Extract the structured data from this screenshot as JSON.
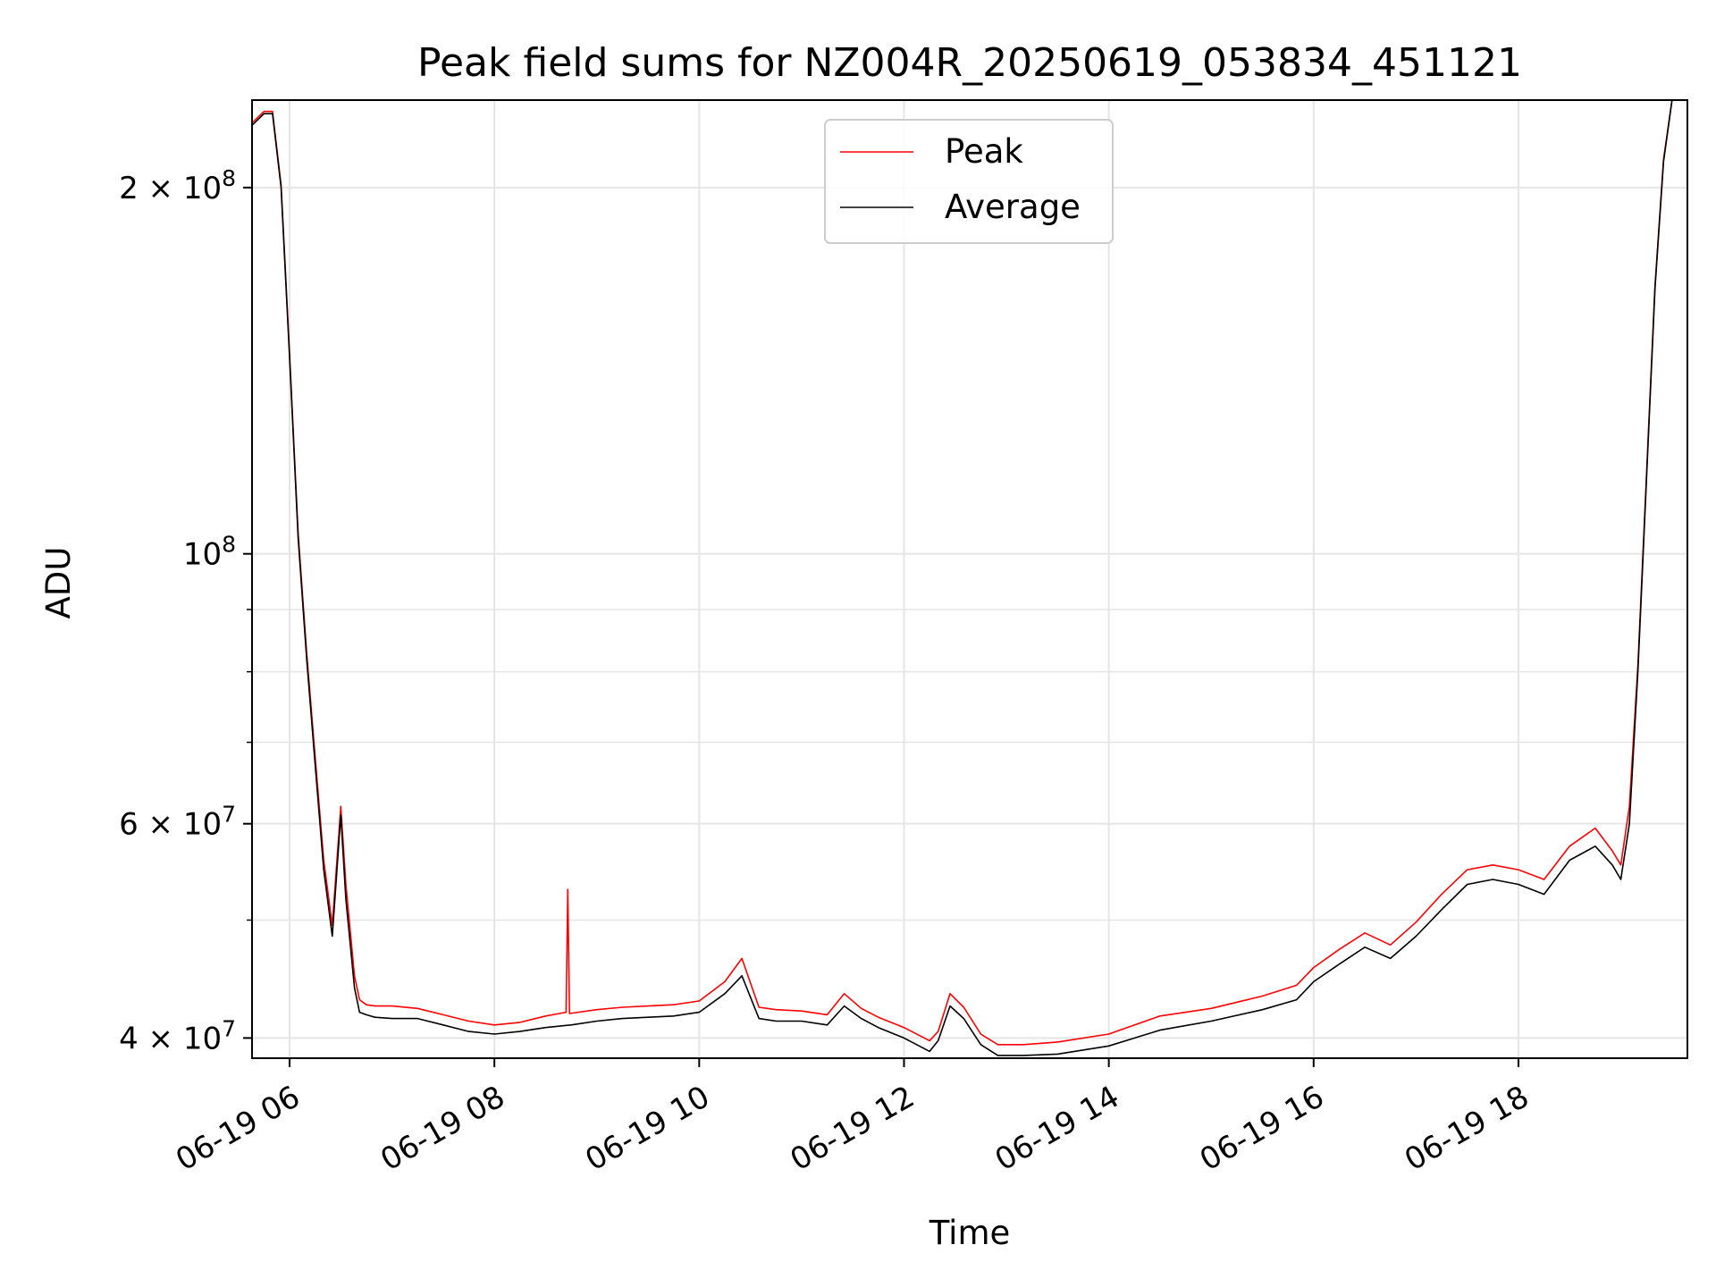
{
  "chart_data": {
    "type": "line",
    "title": "Peak field sums for NZ004R_20250619_053834_451121",
    "xlabel": "Time",
    "ylabel": "ADU",
    "y_scale": "log",
    "ylim": [
      38500000,
      236000000
    ],
    "xlim": [
      "06-19 05:38",
      "06-19 19:39"
    ],
    "x_ticks": [
      "06-19 06",
      "06-19 08",
      "06-19 10",
      "06-19 12",
      "06-19 14",
      "06-19 16",
      "06-19 18"
    ],
    "y_ticks": [
      {
        "value": 40000000,
        "label": "4 × 10⁷",
        "base": "4 × 10",
        "exp": "7"
      },
      {
        "value": 60000000,
        "label": "6 × 10⁷",
        "base": "6 × 10",
        "exp": "7"
      },
      {
        "value": 100000000,
        "label": "10⁸",
        "base": "10",
        "exp": "8"
      },
      {
        "value": 200000000,
        "label": "2 × 10⁸",
        "base": "2 × 10",
        "exp": "8"
      }
    ],
    "y_minor_ticks": [
      50000000,
      70000000,
      80000000,
      90000000
    ],
    "grid": true,
    "legend": {
      "position": "top-center",
      "entries": [
        "Peak",
        "Average"
      ]
    },
    "colors": {
      "Peak": "#ff0000",
      "Average": "#000000",
      "grid": "#e5e5e5"
    },
    "series": [
      {
        "name": "Average",
        "x": [
          "06-19 05:38",
          "06-19 05:45",
          "06-19 05:50",
          "06-19 05:55",
          "06-19 06:00",
          "06-19 06:05",
          "06-19 06:10",
          "06-19 06:15",
          "06-19 06:20",
          "06-19 06:25",
          "06-19 06:30",
          "06-19 06:33",
          "06-19 06:38",
          "06-19 06:41",
          "06-19 06:45",
          "06-19 06:50",
          "06-19 07:00",
          "06-19 07:15",
          "06-19 07:30",
          "06-19 07:45",
          "06-19 08:00",
          "06-19 08:15",
          "06-19 08:30",
          "06-19 08:45",
          "06-19 09:00",
          "06-19 09:15",
          "06-19 09:30",
          "06-19 09:45",
          "06-19 10:00",
          "06-19 10:15",
          "06-19 10:25",
          "06-19 10:35",
          "06-19 10:45",
          "06-19 11:00",
          "06-19 11:15",
          "06-19 11:25",
          "06-19 11:35",
          "06-19 11:45",
          "06-19 12:00",
          "06-19 12:15",
          "06-19 12:20",
          "06-19 12:27",
          "06-19 12:35",
          "06-19 12:45",
          "06-19 12:55",
          "06-19 13:10",
          "06-19 13:30",
          "06-19 14:00",
          "06-19 14:30",
          "06-19 15:00",
          "06-19 15:30",
          "06-19 15:50",
          "06-19 16:00",
          "06-19 16:15",
          "06-19 16:30",
          "06-19 16:45",
          "06-19 17:00",
          "06-19 17:15",
          "06-19 17:30",
          "06-19 17:45",
          "06-19 18:00",
          "06-19 18:15",
          "06-19 18:30",
          "06-19 18:45",
          "06-19 18:55",
          "06-19 19:00",
          "06-19 19:05",
          "06-19 19:10",
          "06-19 19:15",
          "06-19 19:20",
          "06-19 19:25",
          "06-19 19:30",
          "06-19 19:39"
        ],
        "values": [
          225000000,
          230000000,
          230000000,
          200000000,
          145000000,
          103000000,
          82000000,
          67000000,
          55000000,
          48500000,
          61000000,
          52000000,
          44000000,
          42000000,
          41800000,
          41600000,
          41500000,
          41500000,
          41000000,
          40500000,
          40300000,
          40500000,
          40800000,
          41000000,
          41300000,
          41500000,
          41600000,
          41700000,
          42000000,
          43500000,
          45000000,
          41500000,
          41300000,
          41300000,
          41000000,
          42500000,
          41500000,
          40800000,
          40000000,
          39000000,
          39800000,
          42500000,
          41500000,
          39500000,
          38700000,
          38700000,
          38800000,
          39400000,
          40600000,
          41300000,
          42200000,
          43000000,
          44500000,
          46000000,
          47500000,
          46500000,
          48500000,
          51000000,
          53500000,
          54000000,
          53500000,
          52500000,
          56000000,
          57500000,
          55500000,
          54000000,
          60000000,
          80000000,
          115000000,
          165000000,
          210000000,
          236000000,
          236000000
        ]
      },
      {
        "name": "Peak",
        "x": [
          "06-19 05:38",
          "06-19 05:45",
          "06-19 05:50",
          "06-19 05:55",
          "06-19 06:00",
          "06-19 06:05",
          "06-19 06:10",
          "06-19 06:15",
          "06-19 06:20",
          "06-19 06:25",
          "06-19 06:30",
          "06-19 06:33",
          "06-19 06:38",
          "06-19 06:41",
          "06-19 06:45",
          "06-19 06:50",
          "06-19 07:00",
          "06-19 07:15",
          "06-19 07:30",
          "06-19 07:45",
          "06-19 08:00",
          "06-19 08:15",
          "06-19 08:30",
          "06-19 08:42",
          "06-19 08:43",
          "06-19 08:44",
          "06-19 09:00",
          "06-19 09:15",
          "06-19 09:30",
          "06-19 09:45",
          "06-19 10:00",
          "06-19 10:15",
          "06-19 10:25",
          "06-19 10:35",
          "06-19 10:45",
          "06-19 11:00",
          "06-19 11:15",
          "06-19 11:25",
          "06-19 11:35",
          "06-19 11:45",
          "06-19 12:00",
          "06-19 12:15",
          "06-19 12:20",
          "06-19 12:27",
          "06-19 12:35",
          "06-19 12:45",
          "06-19 12:55",
          "06-19 13:10",
          "06-19 13:30",
          "06-19 14:00",
          "06-19 14:30",
          "06-19 15:00",
          "06-19 15:30",
          "06-19 15:50",
          "06-19 16:00",
          "06-19 16:15",
          "06-19 16:30",
          "06-19 16:45",
          "06-19 17:00",
          "06-19 17:15",
          "06-19 17:30",
          "06-19 17:45",
          "06-19 18:00",
          "06-19 18:15",
          "06-19 18:30",
          "06-19 18:45",
          "06-19 18:55",
          "06-19 19:00",
          "06-19 19:05",
          "06-19 19:10",
          "06-19 19:15",
          "06-19 19:20",
          "06-19 19:25",
          "06-19 19:30",
          "06-19 19:39"
        ],
        "values": [
          226000000,
          231000000,
          231000000,
          201000000,
          146000000,
          104000000,
          83000000,
          68000000,
          56000000,
          49500000,
          62000000,
          53500000,
          45000000,
          43000000,
          42600000,
          42500000,
          42500000,
          42300000,
          41800000,
          41300000,
          41000000,
          41200000,
          41700000,
          42000000,
          53000000,
          41900000,
          42200000,
          42400000,
          42500000,
          42600000,
          42900000,
          44500000,
          46500000,
          42400000,
          42200000,
          42100000,
          41800000,
          43500000,
          42300000,
          41600000,
          40800000,
          39800000,
          40500000,
          43500000,
          42400000,
          40300000,
          39500000,
          39500000,
          39700000,
          40300000,
          41700000,
          42300000,
          43300000,
          44200000,
          45700000,
          47300000,
          48800000,
          47700000,
          49800000,
          52500000,
          55000000,
          55500000,
          55000000,
          54000000,
          57500000,
          59500000,
          57000000,
          55500000,
          62000000,
          81000000,
          116000000,
          166000000,
          211000000,
          236000000,
          236000000
        ]
      }
    ]
  }
}
